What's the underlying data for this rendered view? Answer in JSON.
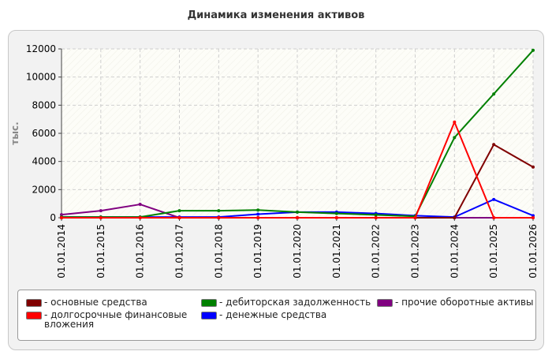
{
  "chart_data": {
    "type": "line",
    "title": "Динамика изменения активов",
    "ylabel": "тыс.",
    "xlabel": "",
    "ylim": [
      0,
      12000
    ],
    "yticks": [
      0,
      2000,
      4000,
      6000,
      8000,
      10000,
      12000
    ],
    "grid": true,
    "legend_position": "bottom",
    "categories": [
      "01.01.2014",
      "01.01.2015",
      "01.01.2016",
      "01.01.2017",
      "01.01.2018",
      "01.01.2019",
      "01.01.2020",
      "01.01.2021",
      "01.01.2022",
      "01.01.2023",
      "01.01.2024",
      "01.01.2025",
      "01.01.2026"
    ],
    "series": [
      {
        "name": "- основные средства",
        "color": "#800000",
        "values": [
          0,
          0,
          0,
          0,
          0,
          0,
          0,
          0,
          0,
          0,
          0,
          5200,
          3600
        ]
      },
      {
        "name": "- дебиторская задолженность",
        "color": "#008000",
        "values": [
          50,
          50,
          50,
          500,
          500,
          550,
          400,
          300,
          200,
          100,
          5700,
          8800,
          11900
        ]
      },
      {
        "name": "- прочие оборотные активы",
        "color": "#800080",
        "values": [
          220,
          500,
          950,
          0,
          0,
          0,
          0,
          0,
          0,
          0,
          0,
          0,
          0
        ]
      },
      {
        "name": "- долгосрочные финансовые вложения",
        "color": "#ff0000",
        "values": [
          0,
          0,
          0,
          0,
          0,
          0,
          0,
          0,
          0,
          0,
          6800,
          0,
          0
        ]
      },
      {
        "name": "- денежные средства",
        "color": "#0000ff",
        "values": [
          50,
          50,
          50,
          50,
          50,
          250,
          400,
          400,
          300,
          150,
          50,
          1300,
          150
        ]
      }
    ]
  }
}
